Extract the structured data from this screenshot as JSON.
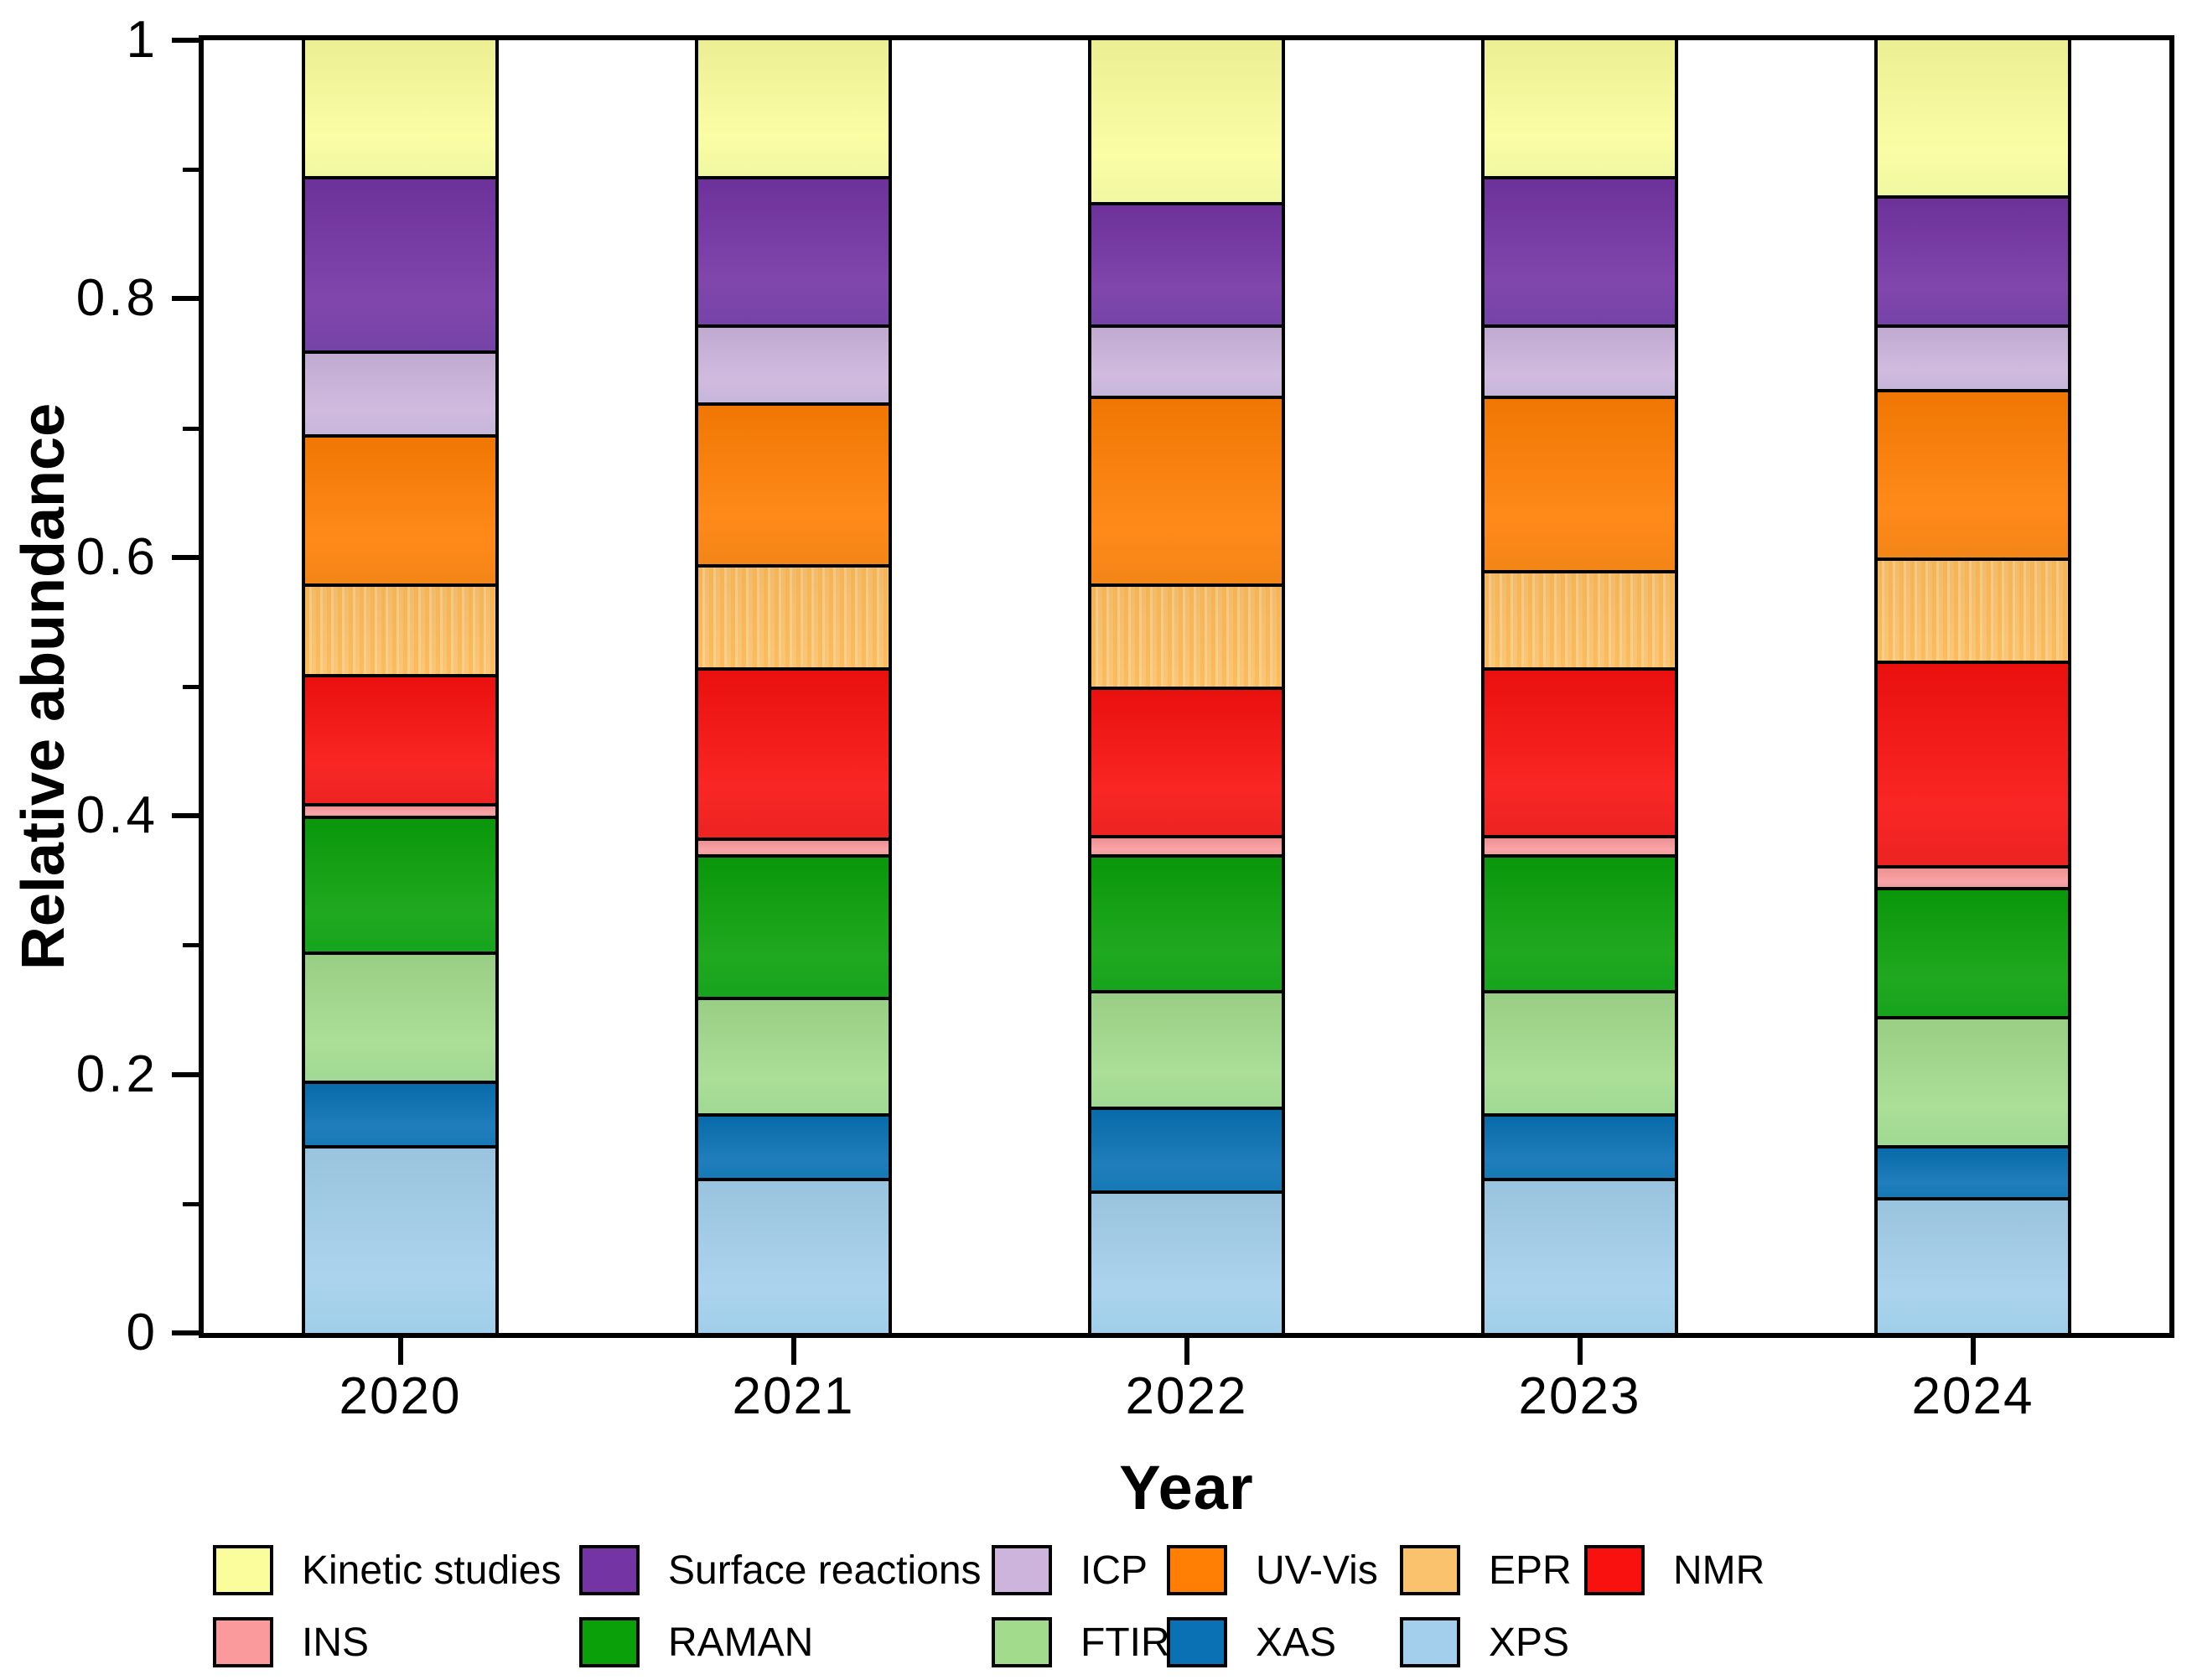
{
  "figure": {
    "background": "#ffffff",
    "frame_color": "#000000"
  },
  "chart_data": {
    "type": "bar",
    "stacked": true,
    "title": "",
    "xlabel": "Year",
    "ylabel": "Relative abundance",
    "ylim": [
      0,
      1
    ],
    "grid": false,
    "legend_position": "bottom",
    "categories": [
      "2020",
      "2021",
      "2022",
      "2023",
      "2024"
    ],
    "yticks_major": {
      "values": [
        0,
        0.2,
        0.4,
        0.6,
        0.8,
        1
      ],
      "labels": [
        "0",
        "0.2",
        "0.4",
        "0.6",
        "0.8",
        "1"
      ]
    },
    "yticks_minor": [
      0.1,
      0.3,
      0.5,
      0.7,
      0.9
    ],
    "series": [
      {
        "name": "XPS",
        "color": "#A3CFEC",
        "values": [
          0.145,
          0.12,
          0.11,
          0.12,
          0.105
        ]
      },
      {
        "name": "XAS",
        "color": "#0971B4",
        "values": [
          0.05,
          0.05,
          0.065,
          0.05,
          0.04
        ]
      },
      {
        "name": "FTIR",
        "color": "#A3DB8D",
        "values": [
          0.1,
          0.09,
          0.09,
          0.095,
          0.1
        ]
      },
      {
        "name": "RAMAN",
        "color": "#0AA00A",
        "values": [
          0.105,
          0.11,
          0.105,
          0.105,
          0.1
        ]
      },
      {
        "name": "INS",
        "color": "#FA9A9D",
        "values": [
          0.01,
          0.013,
          0.015,
          0.015,
          0.017
        ]
      },
      {
        "name": "NMR",
        "color": "#F8110F",
        "values": [
          0.1,
          0.132,
          0.115,
          0.13,
          0.158
        ]
      },
      {
        "name": "EPR",
        "color": "#FBC26E",
        "pattern": "stripes",
        "values": [
          0.07,
          0.08,
          0.08,
          0.075,
          0.08
        ]
      },
      {
        "name": "UV-Vis",
        "color": "#FF7E03",
        "values": [
          0.115,
          0.125,
          0.145,
          0.135,
          0.13
        ]
      },
      {
        "name": "ICP",
        "color": "#CDB4DC",
        "values": [
          0.065,
          0.06,
          0.055,
          0.055,
          0.05
        ]
      },
      {
        "name": "Surface reactions",
        "color": "#7434A4",
        "values": [
          0.135,
          0.115,
          0.095,
          0.115,
          0.1
        ]
      },
      {
        "name": "Kinetic studies",
        "color": "#FBFD9C",
        "values": [
          0.105,
          0.105,
          0.125,
          0.105,
          0.12
        ]
      }
    ],
    "legend_rows": [
      [
        "Kinetic studies",
        "Surface reactions",
        "ICP",
        "UV-Vis",
        "EPR",
        "NMR"
      ],
      [
        "INS",
        "RAMAN",
        "FTIR",
        "XAS",
        "XPS"
      ]
    ]
  }
}
